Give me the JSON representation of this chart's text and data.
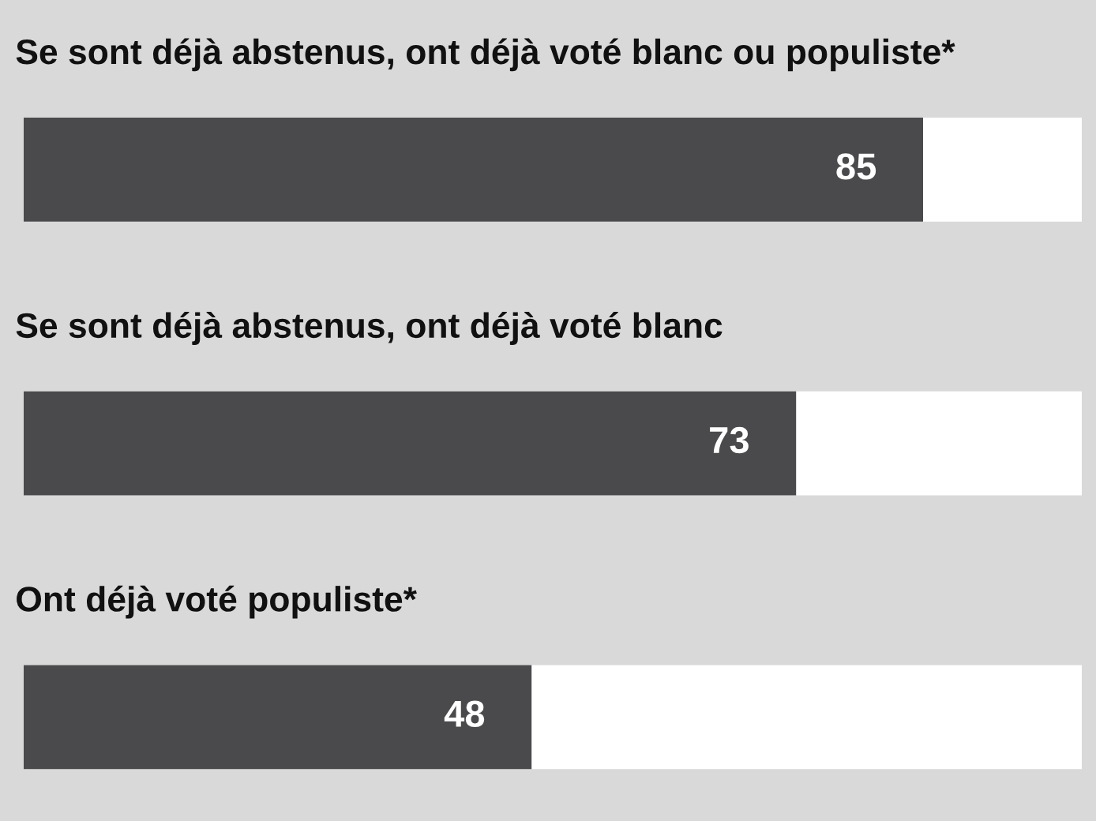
{
  "chart_data": {
    "type": "bar",
    "orientation": "horizontal",
    "categories": [
      "Se sont déjà abstenus, ont déjà voté blanc ou populiste*",
      "Se sont déjà abstenus, ont déjà voté blanc",
      "Ont déjà voté populiste*"
    ],
    "values": [
      85,
      73,
      48
    ],
    "color": "#4a4a4c",
    "xlim": [
      0,
      100
    ],
    "data_labels": true
  }
}
